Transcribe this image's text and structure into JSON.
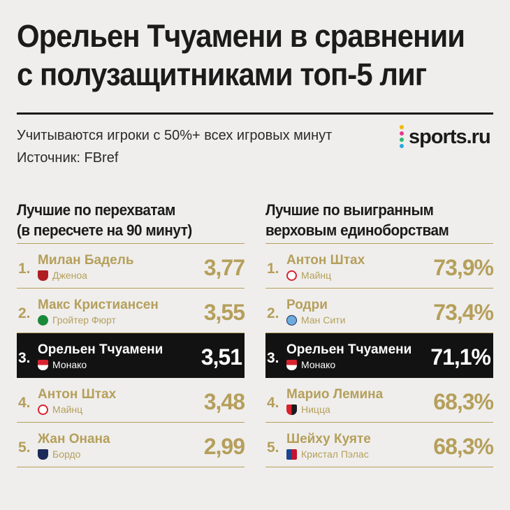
{
  "title_line1": "Орельен Тчуамени в сравнении",
  "title_line2": "с полузащитниками топ-5 лиг",
  "subtitle_line1": "Учитываются игроки с 50%+ всех игровых минут",
  "subtitle_line2": "Источник: FBref",
  "logo": "sports.ru",
  "accent_color": "#b59f5b",
  "highlight_color": "#121212",
  "left": {
    "title_line1": "Лучшие по перехватам",
    "title_line2": "(в пересчете на 90 минут)",
    "rows": [
      {
        "rank": "1.",
        "name": "Милан Бадель",
        "club": "Дженоа",
        "club_icon": "genoa-crest-icon",
        "value": "3,77"
      },
      {
        "rank": "2.",
        "name": "Макс Кристиансен",
        "club": "Гройтер Фюрт",
        "club_icon": "greuther-furth-clover-icon",
        "value": "3,55"
      },
      {
        "rank": "3.",
        "name": "Орельен Тчуамени",
        "club": "Монако",
        "club_icon": "monaco-crest-icon",
        "value": "3,51"
      },
      {
        "rank": "4.",
        "name": "Антон Штах",
        "club": "Майнц",
        "club_icon": "mainz-crest-icon",
        "value": "3,48"
      },
      {
        "rank": "5.",
        "name": "Жан Онана",
        "club": "Бордо",
        "club_icon": "bordeaux-crest-icon",
        "value": "2,99"
      }
    ]
  },
  "right": {
    "title_line1": "Лучшие по выигранным",
    "title_line2": "верховым единоборствам",
    "rows": [
      {
        "rank": "1.",
        "name": "Антон Штах",
        "club": "Майнц",
        "club_icon": "mainz-crest-icon",
        "value": "73,9%"
      },
      {
        "rank": "2.",
        "name": "Родри",
        "club": "Ман Сити",
        "club_icon": "man-city-crest-icon",
        "value": "73,4%"
      },
      {
        "rank": "3.",
        "name": "Орельен Тчуамени",
        "club": "Монако",
        "club_icon": "monaco-crest-icon",
        "value": "71,1%"
      },
      {
        "rank": "4.",
        "name": "Марио Лемина",
        "club": "Ницца",
        "club_icon": "nice-crest-icon",
        "value": "68,3%"
      },
      {
        "rank": "5.",
        "name": "Шейху Куяте",
        "club": "Кристал Пэлас",
        "club_icon": "crystal-palace-crest-icon",
        "value": "68,3%"
      }
    ]
  }
}
